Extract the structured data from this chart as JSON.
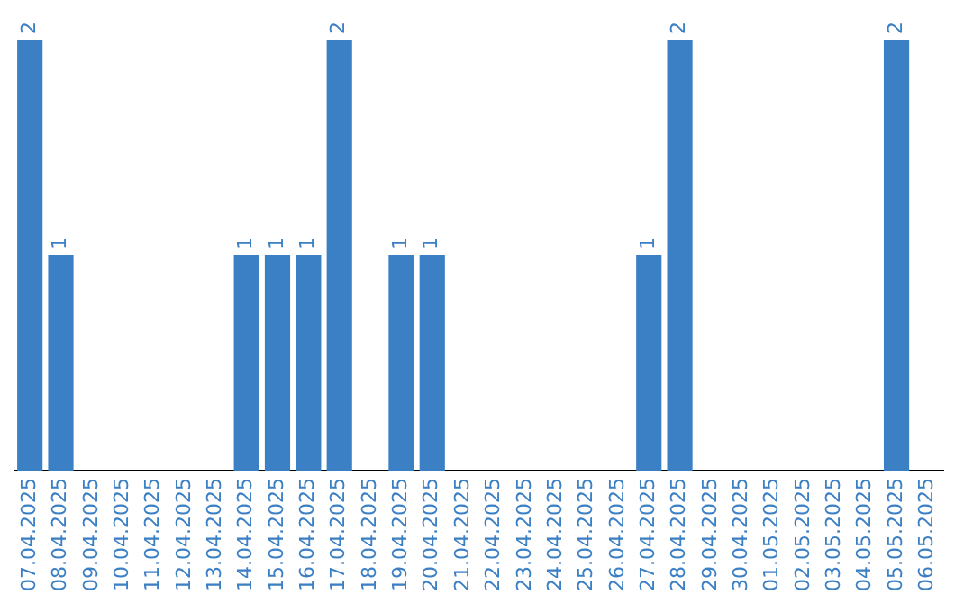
{
  "chart_data": {
    "type": "bar",
    "categories": [
      "07.04.2025",
      "08.04.2025",
      "09.04.2025",
      "10.04.2025",
      "11.04.2025",
      "12.04.2025",
      "13.04.2025",
      "14.04.2025",
      "15.04.2025",
      "16.04.2025",
      "17.04.2025",
      "18.04.2025",
      "19.04.2025",
      "20.04.2025",
      "21.04.2025",
      "22.04.2025",
      "23.04.2025",
      "24.04.2025",
      "25.04.2025",
      "26.04.2025",
      "27.04.2025",
      "28.04.2025",
      "29.04.2025",
      "30.04.2025",
      "01.05.2025",
      "02.05.2025",
      "03.05.2025",
      "04.05.2025",
      "05.05.2025",
      "06.05.2025"
    ],
    "values": [
      2,
      1,
      0,
      0,
      0,
      0,
      0,
      1,
      1,
      1,
      2,
      0,
      1,
      1,
      0,
      0,
      0,
      0,
      0,
      0,
      1,
      2,
      0,
      0,
      0,
      0,
      0,
      0,
      2,
      0
    ],
    "value_labels": [
      "2",
      "1",
      null,
      null,
      null,
      null,
      null,
      "1",
      "1",
      "1",
      "2",
      null,
      "1",
      "1",
      null,
      null,
      null,
      null,
      null,
      null,
      "1",
      "2",
      null,
      null,
      null,
      null,
      null,
      null,
      "2",
      null
    ],
    "color": "#3b7fc4",
    "ylim": [
      0,
      2
    ],
    "tick_labels": "x",
    "grid": false,
    "legend": false
  }
}
